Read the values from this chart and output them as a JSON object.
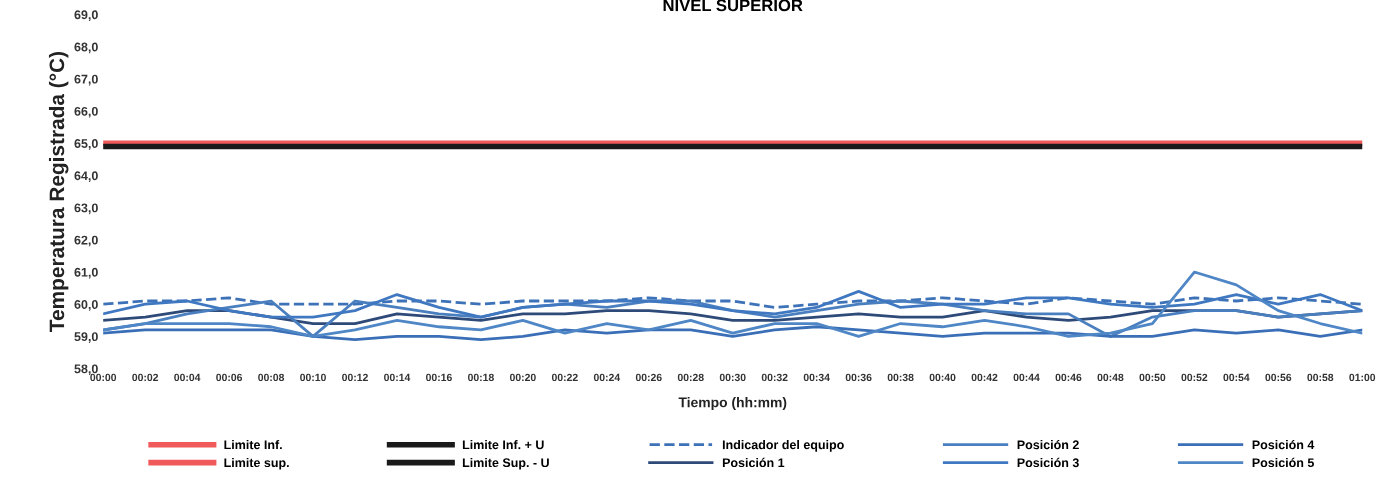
{
  "chart_data": {
    "type": "line",
    "title": "NIVEL SUPERIOR",
    "xlabel": "Tiempo (hh:mm)",
    "ylabel": "Temperatura Registrada (°C)",
    "x": [
      0,
      2,
      4,
      6,
      8,
      10,
      12,
      14,
      16,
      18,
      20,
      22,
      24,
      26,
      28,
      30,
      32,
      34,
      36,
      38,
      40,
      42,
      44,
      46,
      48,
      50,
      52,
      54,
      56,
      58,
      60
    ],
    "xlim": [
      0,
      60
    ],
    "xticks": [
      {
        "value": 0,
        "label": "00:00"
      },
      {
        "value": 2,
        "label": "00:02"
      },
      {
        "value": 4,
        "label": "00:04"
      },
      {
        "value": 6,
        "label": "00:06"
      },
      {
        "value": 8,
        "label": "00:08"
      },
      {
        "value": 10,
        "label": "00:10"
      },
      {
        "value": 12,
        "label": "00:12"
      },
      {
        "value": 14,
        "label": "00:14"
      },
      {
        "value": 16,
        "label": "00:16"
      },
      {
        "value": 18,
        "label": "00:18"
      },
      {
        "value": 20,
        "label": "00:20"
      },
      {
        "value": 22,
        "label": "00:22"
      },
      {
        "value": 24,
        "label": "00:24"
      },
      {
        "value": 26,
        "label": "00:26"
      },
      {
        "value": 28,
        "label": "00:28"
      },
      {
        "value": 30,
        "label": "00:30"
      },
      {
        "value": 32,
        "label": "00:32"
      },
      {
        "value": 34,
        "label": "00:34"
      },
      {
        "value": 36,
        "label": "00:36"
      },
      {
        "value": 38,
        "label": "00:38"
      },
      {
        "value": 40,
        "label": "00:40"
      },
      {
        "value": 42,
        "label": "00:42"
      },
      {
        "value": 44,
        "label": "00:44"
      },
      {
        "value": 46,
        "label": "00:46"
      },
      {
        "value": 48,
        "label": "00:48"
      },
      {
        "value": 50,
        "label": "00:50"
      },
      {
        "value": 52,
        "label": "00:52"
      },
      {
        "value": 54,
        "label": "00:54"
      },
      {
        "value": 56,
        "label": "00:56"
      },
      {
        "value": 58,
        "label": "00:58"
      },
      {
        "value": 60,
        "label": "01:00"
      }
    ],
    "ylim": [
      58,
      69
    ],
    "yticks": [
      {
        "value": 58,
        "label": "58,0"
      },
      {
        "value": 59,
        "label": "59,0"
      },
      {
        "value": 60,
        "label": "60,0"
      },
      {
        "value": 61,
        "label": "61,0"
      },
      {
        "value": 62,
        "label": "62,0"
      },
      {
        "value": 63,
        "label": "63,0"
      },
      {
        "value": 64,
        "label": "64,0"
      },
      {
        "value": 65,
        "label": "65,0"
      },
      {
        "value": 66,
        "label": "66,0"
      },
      {
        "value": 67,
        "label": "67,0"
      },
      {
        "value": 68,
        "label": "68,0"
      },
      {
        "value": 69,
        "label": "69,0"
      }
    ],
    "grid": false,
    "legend": "bottom",
    "marker": "none",
    "series": [
      {
        "name": "Limite Inf.",
        "color": "#f05a5a",
        "values": [
          null,
          null,
          null,
          null,
          null,
          null,
          null,
          null,
          null,
          null,
          null,
          null,
          null,
          null,
          null,
          null,
          null,
          null,
          null,
          null,
          null,
          null,
          null,
          null,
          null,
          null,
          null,
          null,
          null,
          null,
          null
        ]
      },
      {
        "name": "Limite sup.",
        "color": "#f05a5a",
        "values": [
          65.0,
          65.0,
          65.0,
          65.0,
          65.0,
          65.0,
          65.0,
          65.0,
          65.0,
          65.0,
          65.0,
          65.0,
          65.0,
          65.0,
          65.0,
          65.0,
          65.0,
          65.0,
          65.0,
          65.0,
          65.0,
          65.0,
          65.0,
          65.0,
          65.0,
          65.0,
          65.0,
          65.0,
          65.0,
          65.0,
          65.0
        ]
      },
      {
        "name": "Limite Inf. + U",
        "color": "#1a1a1a",
        "values": [
          null,
          null,
          null,
          null,
          null,
          null,
          null,
          null,
          null,
          null,
          null,
          null,
          null,
          null,
          null,
          null,
          null,
          null,
          null,
          null,
          null,
          null,
          null,
          null,
          null,
          null,
          null,
          null,
          null,
          null,
          null
        ]
      },
      {
        "name": "Limite Sup. - U",
        "color": "#1a1a1a",
        "values": [
          64.9,
          64.9,
          64.9,
          64.9,
          64.9,
          64.9,
          64.9,
          64.9,
          64.9,
          64.9,
          64.9,
          64.9,
          64.9,
          64.9,
          64.9,
          64.9,
          64.9,
          64.9,
          64.9,
          64.9,
          64.9,
          64.9,
          64.9,
          64.9,
          64.9,
          64.9,
          64.9,
          64.9,
          64.9,
          64.9,
          64.9
        ]
      },
      {
        "name": "Indicador del equipo",
        "color": "#3d72b8",
        "line_style": "dashed",
        "values": [
          60.0,
          60.1,
          60.1,
          60.2,
          60.0,
          60.0,
          60.0,
          60.1,
          60.1,
          60.0,
          60.1,
          60.1,
          60.1,
          60.2,
          60.1,
          60.1,
          59.9,
          60.0,
          60.1,
          60.1,
          60.2,
          60.1,
          60.0,
          60.2,
          60.1,
          60.0,
          60.2,
          60.1,
          60.2,
          60.1,
          60.0
        ]
      },
      {
        "name": "Posición 1",
        "color": "#2e4a78",
        "values": [
          59.5,
          59.6,
          59.8,
          59.8,
          59.6,
          59.4,
          59.4,
          59.7,
          59.6,
          59.5,
          59.7,
          59.7,
          59.8,
          59.8,
          59.7,
          59.5,
          59.5,
          59.6,
          59.7,
          59.6,
          59.6,
          59.8,
          59.6,
          59.5,
          59.6,
          59.8,
          59.8,
          59.8,
          59.6,
          59.7,
          59.8
        ]
      },
      {
        "name": "Posición 2",
        "color": "#4a7fbf",
        "values": [
          59.2,
          59.4,
          59.7,
          59.9,
          60.1,
          59.0,
          60.1,
          59.9,
          59.7,
          59.6,
          59.9,
          60.0,
          59.9,
          60.1,
          60.1,
          59.8,
          59.6,
          59.8,
          60.0,
          60.1,
          60.0,
          59.8,
          59.7,
          59.7,
          59.0,
          59.6,
          59.8,
          59.8,
          59.6,
          59.7,
          59.8
        ]
      },
      {
        "name": "Posición 3",
        "color": "#3f78c0",
        "values": [
          59.7,
          60.0,
          60.1,
          59.8,
          59.6,
          59.6,
          59.8,
          60.3,
          59.9,
          59.6,
          59.9,
          60.0,
          60.1,
          60.1,
          60.0,
          59.8,
          59.7,
          59.9,
          60.4,
          59.9,
          60.0,
          60.0,
          60.2,
          60.2,
          60.0,
          59.9,
          60.0,
          60.3,
          60.0,
          60.3,
          59.8
        ]
      },
      {
        "name": "Posición 4",
        "color": "#3a6fb8",
        "values": [
          59.1,
          59.2,
          59.2,
          59.2,
          59.2,
          59.0,
          58.9,
          59.0,
          59.0,
          58.9,
          59.0,
          59.2,
          59.1,
          59.2,
          59.2,
          59.0,
          59.2,
          59.3,
          59.2,
          59.1,
          59.0,
          59.1,
          59.1,
          59.1,
          59.0,
          59.0,
          59.2,
          59.1,
          59.2,
          59.0,
          59.2
        ]
      },
      {
        "name": "Posición 5",
        "color": "#4e86c6",
        "values": [
          59.2,
          59.4,
          59.4,
          59.4,
          59.3,
          59.0,
          59.2,
          59.5,
          59.3,
          59.2,
          59.5,
          59.1,
          59.4,
          59.2,
          59.5,
          59.1,
          59.4,
          59.4,
          59.0,
          59.4,
          59.3,
          59.5,
          59.3,
          59.0,
          59.1,
          59.4,
          61.0,
          60.6,
          59.8,
          59.4,
          59.1
        ]
      }
    ]
  }
}
